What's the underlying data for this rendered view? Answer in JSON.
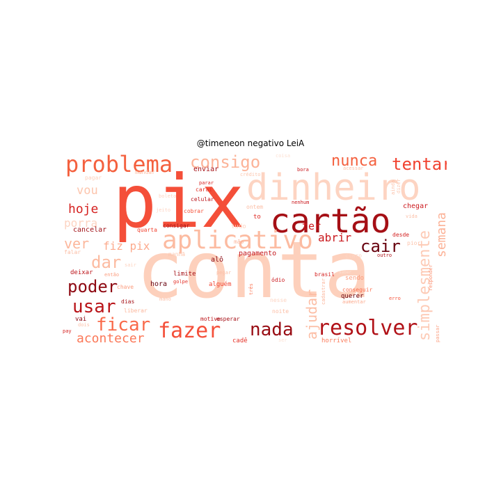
{
  "title": "@timeneon negativo LeiA",
  "words": [
    {
      "text": "conta",
      "color": "#fdd0bc"
    },
    {
      "text": "pix",
      "color": "#f44f39"
    },
    {
      "text": "dinheiro",
      "color": "#fdd4c2"
    },
    {
      "text": "cartão",
      "color": "#a50f15"
    },
    {
      "text": "aplicativo",
      "color": "#fcbba1"
    },
    {
      "text": "problema",
      "color": "#f4603e"
    },
    {
      "text": "resolver",
      "color": "#b11218"
    },
    {
      "text": "fazer",
      "color": "#f44f39"
    },
    {
      "text": "simplesmente",
      "color": "#fdcab5"
    },
    {
      "text": "nada",
      "color": "#980c13"
    },
    {
      "text": "ficar",
      "color": "#f96a4a"
    },
    {
      "text": "usar",
      "color": "#b91419"
    },
    {
      "text": "poder",
      "color": "#8e0912"
    },
    {
      "text": "consigo",
      "color": "#fcb398"
    },
    {
      "text": "tentar",
      "color": "#f14331"
    },
    {
      "text": "nunca",
      "color": "#f4603e"
    },
    {
      "text": "cair",
      "color": "#67000d"
    },
    {
      "text": "ajudar",
      "color": "#fcbda4"
    },
    {
      "text": "dar",
      "color": "#fcbba1"
    },
    {
      "text": "acontecer",
      "color": "#fb7858"
    },
    {
      "text": "semana",
      "color": "#fcb297"
    },
    {
      "text": "fiz pix",
      "color": "#fcaa8d"
    },
    {
      "text": "ver",
      "color": "#fcb79c"
    },
    {
      "text": "hoje",
      "color": "#d52221"
    },
    {
      "text": "porra",
      "color": "#fdd4c2"
    },
    {
      "text": "vou",
      "color": "#fcc5ad"
    },
    {
      "text": "ter",
      "color": "#cb181d"
    },
    {
      "text": "abrir",
      "color": "#c9181d"
    },
    {
      "text": "nesse",
      "color": "#fdd5c4"
    },
    {
      "text": "celular",
      "color": "#bb141a"
    },
    {
      "text": "falar",
      "color": "#fcbea5"
    },
    {
      "text": "sair",
      "color": "#fdd4c2"
    },
    {
      "text": "pagar",
      "color": "#fdd0bc"
    },
    {
      "text": "mandar",
      "color": "#fcbba1"
    },
    {
      "text": "enviar",
      "color": "#a50f15"
    },
    {
      "text": "carai",
      "color": "#e32f27"
    },
    {
      "text": "crédito",
      "color": "#fcc5ad"
    },
    {
      "text": "bora",
      "color": "#c9181d"
    },
    {
      "text": "acessar",
      "color": "#fcc1a8"
    },
    {
      "text": "boleto",
      "color": "#fdd4c2"
    },
    {
      "text": "jeito",
      "color": "#fdd5c4"
    },
    {
      "text": "cobrar",
      "color": "#f5533b"
    },
    {
      "text": "parar",
      "color": "#d92523"
    },
    {
      "text": "nenhum",
      "color": "#cb181d"
    },
    {
      "text": "ontem",
      "color": "#fcbda4"
    },
    {
      "text": "chegar",
      "color": "#cb181d"
    },
    {
      "text": "dizer",
      "color": "#fcc5ad"
    },
    {
      "text": "ainda",
      "color": "#fcc1a8"
    },
    {
      "text": "cancelar",
      "color": "#9f0e14"
    },
    {
      "text": "quarta",
      "color": "#f14432"
    },
    {
      "text": "consigar",
      "color": "#a50f15"
    },
    {
      "text": "to",
      "color": "#de2b25"
    },
    {
      "text": "tudo",
      "color": "#fdd2bf"
    },
    {
      "text": "vida",
      "color": "#fcbfa7"
    },
    {
      "text": "pior",
      "color": "#fcc3ab"
    },
    {
      "text": "pagamento",
      "color": "#c4161c"
    },
    {
      "text": "alô",
      "color": "#8a0812"
    },
    {
      "text": "mão",
      "color": "#fcb499"
    },
    {
      "text": "manhã",
      "color": "#fcc4ab"
    },
    {
      "text": "desde",
      "color": "#d32020"
    },
    {
      "text": "outro",
      "color": "#ad1117"
    },
    {
      "text": "claro",
      "color": "#fdd5c4"
    },
    {
      "text": "deixar",
      "color": "#bc141a"
    },
    {
      "text": "então",
      "color": "#fc9c7d"
    },
    {
      "text": "limite",
      "color": "#a30f15"
    },
    {
      "text": "golpe",
      "color": "#e32f27"
    },
    {
      "text": "alguém",
      "color": "#f14432"
    },
    {
      "text": "ódio",
      "color": "#cb181d"
    },
    {
      "text": "brasil",
      "color": "#d52221"
    },
    {
      "text": "sendo",
      "color": "#fc9c7d"
    },
    {
      "text": "chave",
      "color": "#fc9c7d"
    },
    {
      "text": "hora",
      "color": "#67000d"
    },
    {
      "text": "dias",
      "color": "#a50f15"
    },
    {
      "text": "liberar",
      "color": "#fcb79c"
    },
    {
      "text": "mano",
      "color": "#fcbfa7"
    },
    {
      "text": "conseguir",
      "color": "#fb7050"
    },
    {
      "text": "querer",
      "color": "#67000d"
    },
    {
      "text": "aumentar",
      "color": "#fca98c"
    },
    {
      "text": "erro",
      "color": "#f5533b"
    },
    {
      "text": "responder",
      "color": "#fc8f6f"
    },
    {
      "text": "três",
      "color": "#fb7d5d"
    },
    {
      "text": "noite",
      "color": "#fcbea5"
    },
    {
      "text": "cadastrar",
      "color": "#fcb499"
    },
    {
      "text": "passar",
      "color": "#fca285"
    },
    {
      "text": "vai",
      "color": "#8a0812"
    },
    {
      "text": "dois",
      "color": "#fcc1a8"
    },
    {
      "text": "pay",
      "color": "#d52221"
    },
    {
      "text": "motivo",
      "color": "#bd151a"
    },
    {
      "text": "esperar",
      "color": "#a50f15"
    },
    {
      "text": "cadê",
      "color": "#e53228"
    },
    {
      "text": "horrível",
      "color": "#fb7c5c"
    },
    {
      "text": "coisa",
      "color": "#fde0d2"
    },
    {
      "text": "saber",
      "color": "#fde0d2"
    },
    {
      "text": "pegar",
      "color": "#fcbfa7"
    },
    {
      "text": "ser",
      "color": "#fde0d2"
    }
  ]
}
